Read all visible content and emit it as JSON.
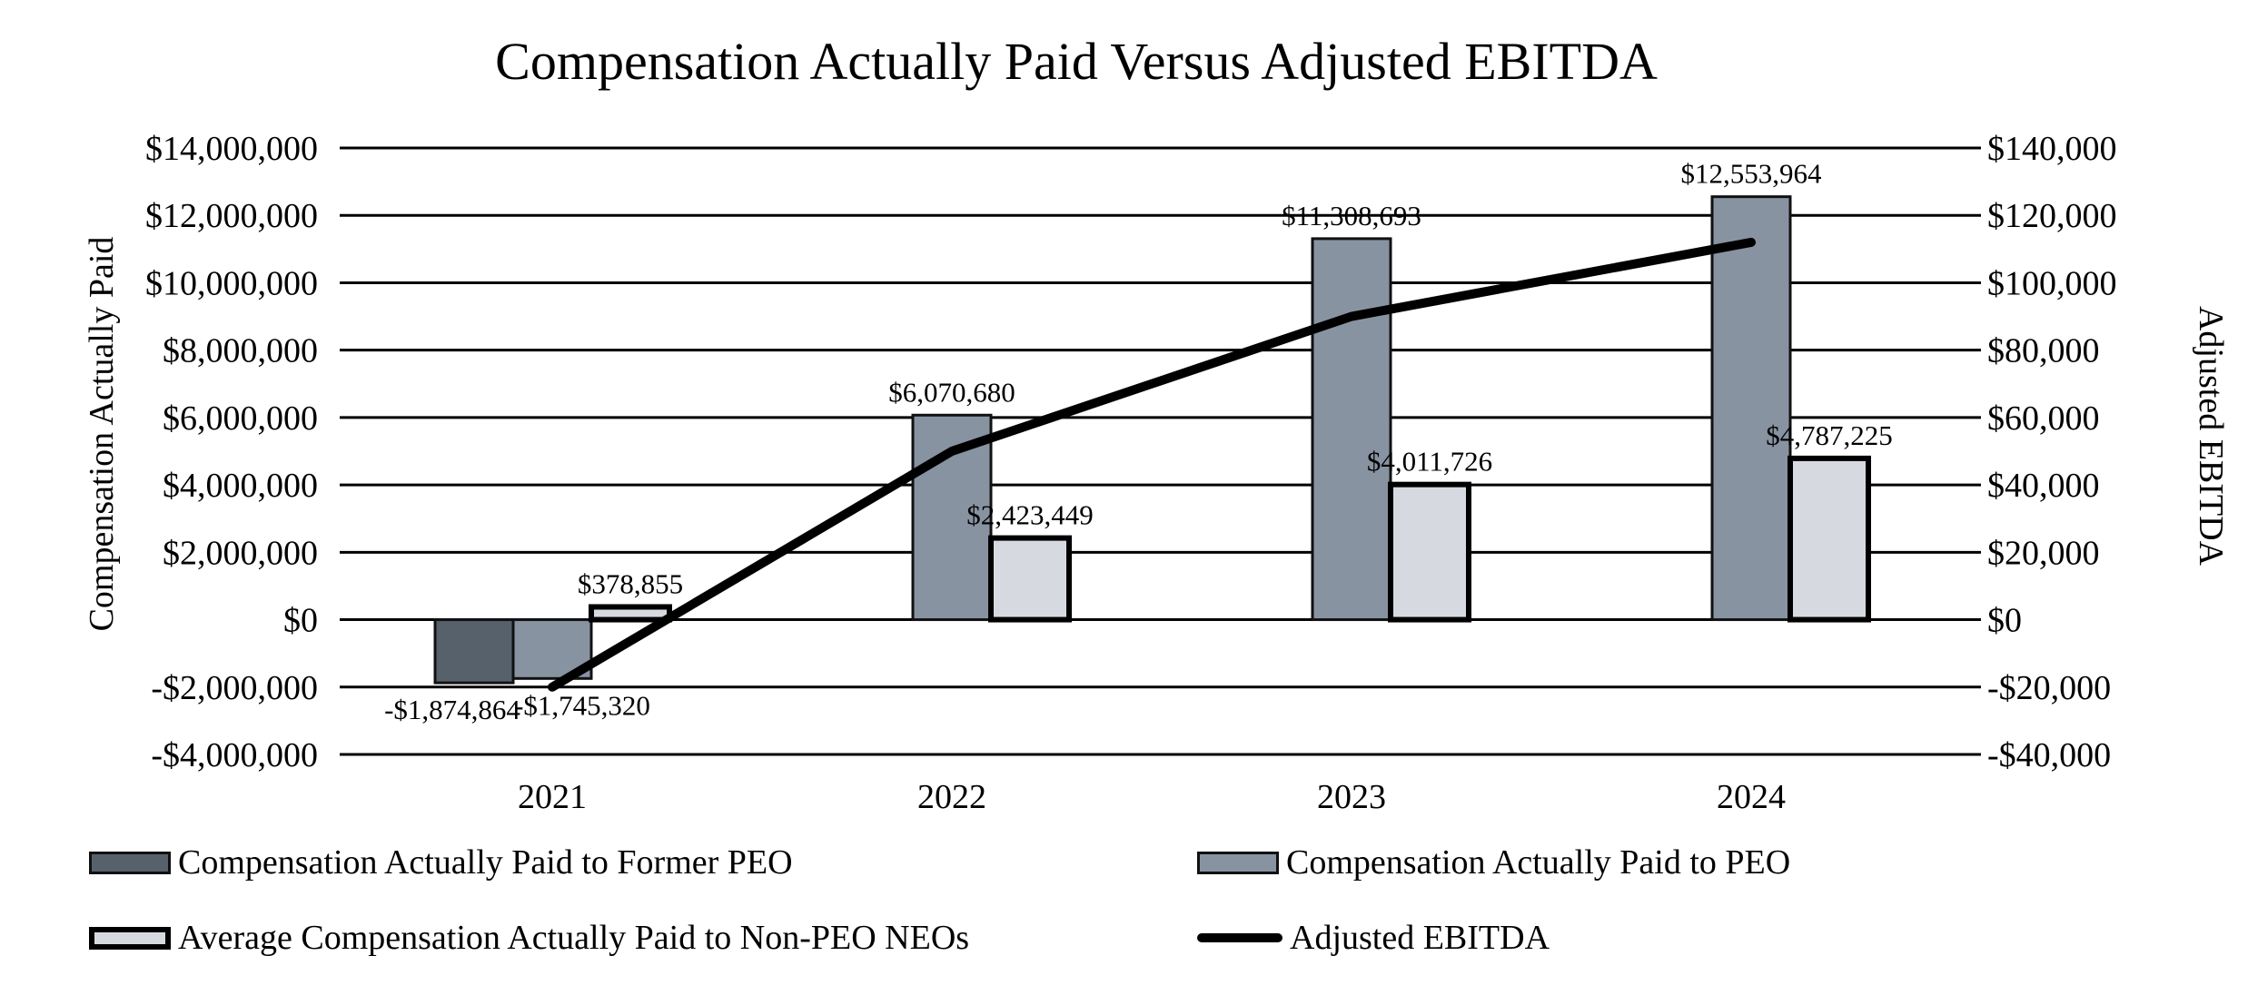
{
  "chart_data": {
    "type": "combo-bar-line",
    "title": "Compensation Actually Paid Versus Adjusted EBITDA",
    "categories": [
      "2021",
      "2022",
      "2023",
      "2024"
    ],
    "grid": true,
    "legend_position": "bottom-two-columns",
    "left_axis": {
      "title": "Compensation Actually Paid",
      "max": 14000000,
      "min": -4000000,
      "ticks": [
        {
          "v": 14000000,
          "label": "$14,000,000"
        },
        {
          "v": 12000000,
          "label": "$12,000,000"
        },
        {
          "v": 10000000,
          "label": "$10,000,000"
        },
        {
          "v": 8000000,
          "label": "$8,000,000"
        },
        {
          "v": 6000000,
          "label": "$6,000,000"
        },
        {
          "v": 4000000,
          "label": "$4,000,000"
        },
        {
          "v": 2000000,
          "label": "$2,000,000"
        },
        {
          "v": 0,
          "label": "$0"
        },
        {
          "v": -2000000,
          "label": "-$2,000,000"
        },
        {
          "v": -4000000,
          "label": "-$4,000,000"
        }
      ]
    },
    "right_axis": {
      "title": "Adjusted EBITDA",
      "max": 140000,
      "min": -40000,
      "ticks": [
        {
          "v": 140000,
          "label": "$140,000"
        },
        {
          "v": 120000,
          "label": "$120,000"
        },
        {
          "v": 100000,
          "label": "$100,000"
        },
        {
          "v": 80000,
          "label": "$80,000"
        },
        {
          "v": 60000,
          "label": "$60,000"
        },
        {
          "v": 40000,
          "label": "$40,000"
        },
        {
          "v": 20000,
          "label": "$20,000"
        },
        {
          "v": 0,
          "label": "$0"
        },
        {
          "v": -20000,
          "label": "-$20,000"
        },
        {
          "v": -40000,
          "label": "-$40,000"
        }
      ]
    },
    "series": [
      {
        "id": "former-peo",
        "name": "Compensation Actually Paid to Former PEO",
        "type": "bar",
        "axis": "left",
        "color": "#57616B",
        "border": "#111111",
        "border_w": 3,
        "points": [
          {
            "v": -1874864,
            "label": "-$1,874,864",
            "dx": -24
          },
          {
            "v": null
          },
          {
            "v": null
          },
          {
            "v": null
          }
        ]
      },
      {
        "id": "peo",
        "name": "Compensation Actually Paid to PEO",
        "type": "bar",
        "axis": "left",
        "color": "#8893A2",
        "border": "#111111",
        "border_w": 3,
        "points": [
          {
            "v": -1745320,
            "label": "-$1,745,320",
            "dx": 33
          },
          {
            "v": 6070680,
            "label": "$6,070,680"
          },
          {
            "v": 11308693,
            "label": "$11,308,693"
          },
          {
            "v": 12553964,
            "label": "$12,553,964"
          }
        ]
      },
      {
        "id": "non-peo-neos",
        "name": "Average Compensation Actually Paid to Non-PEO NEOs",
        "type": "bar",
        "axis": "left",
        "color": "#D6DAE0",
        "border": "#000000",
        "border_w": 6,
        "points": [
          {
            "v": 378855,
            "label": "$378,855"
          },
          {
            "v": 2423449,
            "label": "$2,423,449"
          },
          {
            "v": 4011726,
            "label": "$4,011,726"
          },
          {
            "v": 4787225,
            "label": "$4,787,225"
          }
        ]
      },
      {
        "id": "adjusted-ebitda",
        "name": "Adjusted EBITDA",
        "type": "line",
        "axis": "right",
        "color": "#000000",
        "line_w": 10,
        "points": [
          {
            "v": -20000
          },
          {
            "v": 50000
          },
          {
            "v": 90000
          },
          {
            "v": 112000
          }
        ],
        "note": "line values estimated from gridlines; no data labels shown"
      }
    ]
  }
}
